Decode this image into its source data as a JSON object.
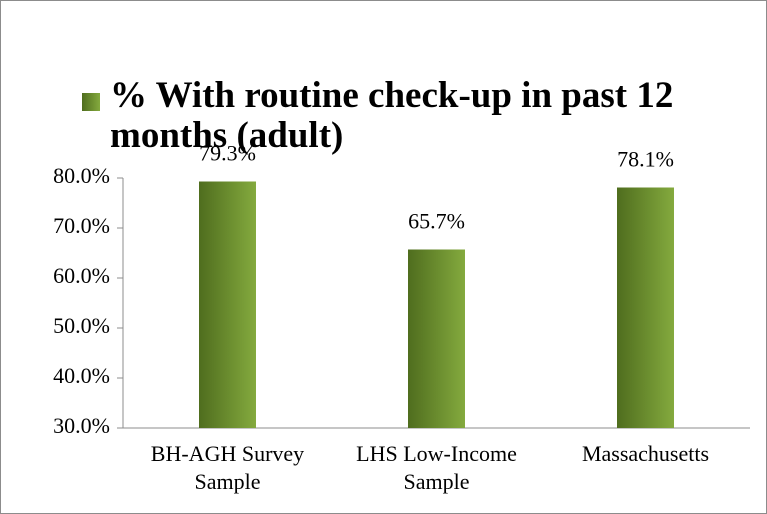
{
  "chart_data": {
    "type": "bar",
    "series": [
      {
        "name": "% With routine check-up in past 12 months (adult)",
        "color": "#6b8e2f",
        "values": [
          79.3,
          65.7,
          78.1
        ],
        "value_labels": [
          "79.3%",
          "65.7%",
          "78.1%"
        ]
      }
    ],
    "categories": [
      "BH-AGH Survey Sample",
      "LHS Low-Income Sample",
      "Massachusetts"
    ],
    "ylim": [
      30,
      80
    ],
    "yticks": [
      {
        "value": 30,
        "label": "30.0%"
      },
      {
        "value": 40,
        "label": "40.0%"
      },
      {
        "value": 50,
        "label": "50.0%"
      },
      {
        "value": 60,
        "label": "60.0%"
      },
      {
        "value": 70,
        "label": "70.0%"
      },
      {
        "value": 80,
        "label": "80.0%"
      }
    ],
    "legend": "top-left"
  }
}
